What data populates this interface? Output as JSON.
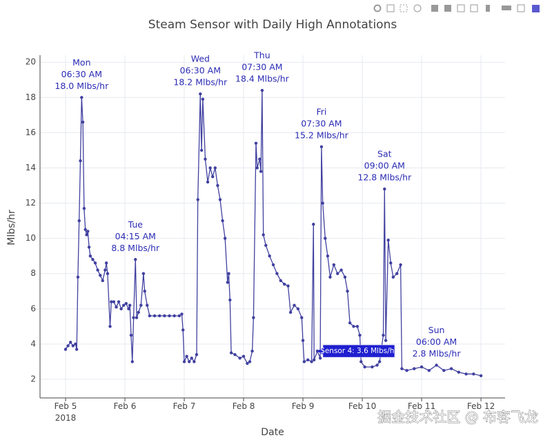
{
  "chart_data": {
    "type": "line",
    "title": "Steam Sensor with Daily High Annotations",
    "xlabel": "Date",
    "ylabel": "Mlbs/hr",
    "xlim": [
      "2018-02-04 13:40",
      "2018-02-12 09:45"
    ],
    "ylim": [
      0.94,
      20.4
    ],
    "xticks": [
      {
        "value": "2018-02-05 00:00",
        "label": "Feb 5\n2018"
      },
      {
        "value": "2018-02-06 00:00",
        "label": "Feb 6"
      },
      {
        "value": "2018-02-07 00:00",
        "label": "Feb 7"
      },
      {
        "value": "2018-02-08 00:00",
        "label": "Feb 8"
      },
      {
        "value": "2018-02-09 00:00",
        "label": "Feb 9"
      },
      {
        "value": "2018-02-10 00:00",
        "label": "Feb 10"
      },
      {
        "value": "2018-02-11 00:00",
        "label": "Feb 11"
      },
      {
        "value": "2018-02-12 00:00",
        "label": "Feb 12"
      }
    ],
    "yticks": [
      2,
      4,
      6,
      8,
      10,
      12,
      14,
      16,
      18,
      20
    ],
    "grid": true,
    "series": [
      {
        "name": "Sensor 4",
        "color": "#4040a0",
        "x": [
          "2018-02-05 00:00",
          "2018-02-05 01:00",
          "2018-02-05 02:00",
          "2018-02-05 03:00",
          "2018-02-05 04:00",
          "2018-02-05 04:30",
          "2018-02-05 05:00",
          "2018-02-05 05:30",
          "2018-02-05 06:00",
          "2018-02-05 06:30",
          "2018-02-05 07:00",
          "2018-02-05 07:30",
          "2018-02-05 08:00",
          "2018-02-05 08:30",
          "2018-02-05 09:00",
          "2018-02-05 09:30",
          "2018-02-05 10:00",
          "2018-02-05 11:00",
          "2018-02-05 12:00",
          "2018-02-05 13:00",
          "2018-02-05 14:00",
          "2018-02-05 15:00",
          "2018-02-05 16:00",
          "2018-02-05 16:30",
          "2018-02-05 17:00",
          "2018-02-05 18:00",
          "2018-02-05 18:30",
          "2018-02-05 19:30",
          "2018-02-05 20:30",
          "2018-02-05 21:30",
          "2018-02-05 22:30",
          "2018-02-05 23:30",
          "2018-02-06 00:30",
          "2018-02-06 01:30",
          "2018-02-06 02:00",
          "2018-02-06 02:30",
          "2018-02-06 03:00",
          "2018-02-06 03:30",
          "2018-02-06 04:15",
          "2018-02-06 04:45",
          "2018-02-06 05:30",
          "2018-02-06 06:30",
          "2018-02-06 07:30",
          "2018-02-06 08:00",
          "2018-02-06 09:00",
          "2018-02-06 10:00",
          "2018-02-06 12:00",
          "2018-02-06 14:00",
          "2018-02-06 16:00",
          "2018-02-06 18:00",
          "2018-02-06 20:00",
          "2018-02-06 22:00",
          "2018-02-06 23:00",
          "2018-02-06 23:30",
          "2018-02-07 00:00",
          "2018-02-07 01:00",
          "2018-02-07 02:00",
          "2018-02-07 03:00",
          "2018-02-07 04:00",
          "2018-02-07 05:00",
          "2018-02-07 05:30",
          "2018-02-07 06:30",
          "2018-02-07 07:00",
          "2018-02-07 07:30",
          "2018-02-07 08:30",
          "2018-02-07 09:30",
          "2018-02-07 10:30",
          "2018-02-07 11:30",
          "2018-02-07 12:30",
          "2018-02-07 13:30",
          "2018-02-07 14:30",
          "2018-02-07 15:30",
          "2018-02-07 16:30",
          "2018-02-07 17:30",
          "2018-02-07 18:00",
          "2018-02-07 18:30",
          "2018-02-07 19:00",
          "2018-02-07 20:30",
          "2018-02-07 22:30",
          "2018-02-08 00:00",
          "2018-02-08 01:30",
          "2018-02-08 02:30",
          "2018-02-08 03:30",
          "2018-02-08 04:00",
          "2018-02-08 05:00",
          "2018-02-08 05:30",
          "2018-02-08 06:30",
          "2018-02-08 07:00",
          "2018-02-08 07:30",
          "2018-02-08 08:00",
          "2018-02-08 09:00",
          "2018-02-08 10:30",
          "2018-02-08 12:00",
          "2018-02-08 13:30",
          "2018-02-08 15:00",
          "2018-02-08 16:30",
          "2018-02-08 18:00",
          "2018-02-08 19:00",
          "2018-02-08 20:30",
          "2018-02-08 22:00",
          "2018-02-08 23:30",
          "2018-02-09 00:00",
          "2018-02-09 00:30",
          "2018-02-09 02:00",
          "2018-02-09 03:30",
          "2018-02-09 04:15",
          "2018-02-09 04:30",
          "2018-02-09 05:50",
          "2018-02-09 07:00",
          "2018-02-09 07:30",
          "2018-02-09 08:00",
          "2018-02-09 09:00",
          "2018-02-09 10:00",
          "2018-02-09 11:00",
          "2018-02-09 12:30",
          "2018-02-09 14:00",
          "2018-02-09 15:30",
          "2018-02-09 17:00",
          "2018-02-09 18:00",
          "2018-02-09 19:00",
          "2018-02-09 20:30",
          "2018-02-09 22:00",
          "2018-02-09 23:00",
          "2018-02-09 23:30",
          "2018-02-10 01:00",
          "2018-02-10 04:00",
          "2018-02-10 06:00",
          "2018-02-10 07:00",
          "2018-02-10 08:30",
          "2018-02-10 09:00",
          "2018-02-10 09:30",
          "2018-02-10 10:30",
          "2018-02-10 11:30",
          "2018-02-10 12:30",
          "2018-02-10 14:00",
          "2018-02-10 15:30",
          "2018-02-10 16:00",
          "2018-02-10 18:00",
          "2018-02-10 21:00",
          "2018-02-11 00:00",
          "2018-02-11 03:00",
          "2018-02-11 06:00",
          "2018-02-11 09:00",
          "2018-02-11 12:00",
          "2018-02-11 15:00",
          "2018-02-11 18:00",
          "2018-02-11 21:00",
          "2018-02-12 00:00"
        ],
        "values": [
          3.7,
          3.9,
          4.1,
          3.9,
          4.0,
          3.7,
          7.8,
          11.0,
          14.4,
          18.0,
          16.6,
          11.7,
          10.5,
          10.2,
          10.4,
          9.5,
          9.0,
          8.8,
          8.6,
          8.2,
          7.9,
          7.6,
          8.2,
          8.6,
          8.0,
          5.0,
          6.4,
          6.4,
          6.1,
          6.4,
          6.0,
          6.2,
          6.3,
          6.0,
          6.2,
          4.5,
          3.0,
          5.5,
          8.8,
          5.5,
          5.8,
          6.2,
          8.0,
          7.0,
          6.2,
          5.6,
          5.6,
          5.6,
          5.6,
          5.6,
          5.6,
          5.6,
          5.7,
          4.8,
          3.0,
          3.3,
          3.0,
          3.2,
          3.0,
          3.4,
          12.2,
          18.2,
          15.0,
          17.9,
          14.5,
          13.2,
          14.0,
          13.5,
          14.0,
          13.0,
          12.2,
          11.0,
          10.0,
          7.5,
          8.0,
          6.5,
          3.5,
          3.4,
          3.2,
          3.3,
          2.9,
          3.0,
          3.6,
          5.5,
          15.4,
          14.0,
          14.5,
          13.8,
          18.4,
          10.2,
          9.6,
          9.0,
          8.5,
          8.0,
          7.6,
          7.4,
          7.3,
          5.8,
          6.2,
          6.0,
          5.5,
          4.2,
          3.0,
          3.1,
          3.0,
          10.8,
          3.1,
          3.6,
          3.2,
          15.2,
          12.0,
          10.0,
          9.0,
          7.8,
          8.5,
          8.0,
          8.2,
          7.8,
          7.0,
          5.2,
          5.0,
          5.0,
          4.5,
          3.0,
          2.7,
          2.7,
          2.8,
          3.0,
          4.5,
          12.8,
          4.2,
          9.9,
          8.6,
          7.8,
          8.0,
          8.5,
          2.6,
          2.5,
          2.6,
          2.7,
          2.5,
          2.8,
          2.5,
          2.6,
          2.4,
          2.3,
          2.3,
          2.2
        ]
      }
    ],
    "annotations": [
      {
        "x": "2018-02-05 06:30",
        "y": 18.0,
        "lines": [
          "Mon",
          "06:30 AM",
          "18.0 Mlbs/hr"
        ]
      },
      {
        "x": "2018-02-06 04:15",
        "y": 8.8,
        "lines": [
          "Tue",
          "04:15 AM",
          "8.8 Mlbs/hr"
        ]
      },
      {
        "x": "2018-02-07 06:30",
        "y": 18.2,
        "lines": [
          "Wed",
          "06:30 AM",
          "18.2 Mlbs/hr"
        ]
      },
      {
        "x": "2018-02-08 07:30",
        "y": 18.4,
        "lines": [
          "Thu",
          "07:30 AM",
          "18.4 Mlbs/hr"
        ]
      },
      {
        "x": "2018-02-09 07:30",
        "y": 15.2,
        "lines": [
          "Fri",
          "07:30 AM",
          "15.2 Mlbs/hr"
        ]
      },
      {
        "x": "2018-02-10 09:00",
        "y": 12.8,
        "lines": [
          "Sat",
          "09:00 AM",
          "12.8 Mlbs/hr"
        ]
      },
      {
        "x": "2018-02-11 06:00",
        "y": 2.8,
        "lines": [
          "Sun",
          "06:00 AM",
          "2.8 Mlbs/hr"
        ]
      }
    ],
    "hover": {
      "x": "2018-02-09 05:50",
      "y": 3.6,
      "text": "Sensor 4: 3.6 Mlbs/hr"
    },
    "watermark": "掘金技术社区 @ 布客飞龙"
  }
}
